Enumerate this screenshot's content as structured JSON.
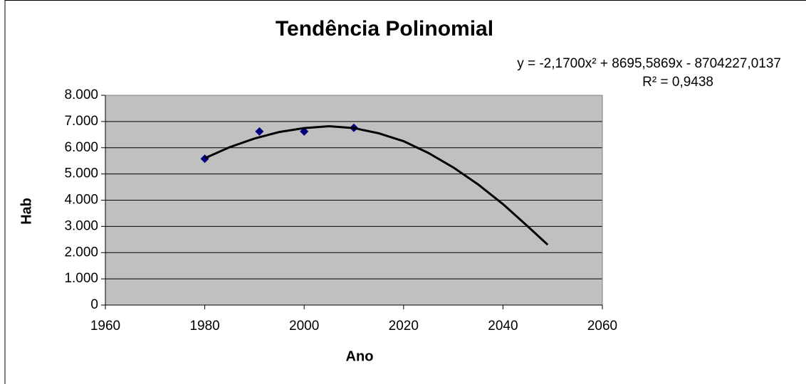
{
  "chart_data": {
    "type": "scatter",
    "title": "Tendência Polinomial",
    "equation": "y = -2,1700x² + 8695,5869x - 8704227,0137",
    "r_squared": "R² = 0,9438",
    "xlabel": "Ano",
    "ylabel": "Hab",
    "series": [
      {
        "color": "#000080",
        "x": [
          1980,
          1991,
          2000,
          2010
        ],
        "values": [
          5580,
          6620,
          6620,
          6760
        ]
      },
      {
        "kind": "trendline",
        "color": "#000000",
        "x": [
          1980,
          1985,
          1990,
          1995,
          2000,
          2005,
          2010,
          2015,
          2020,
          2025,
          2030,
          2035,
          2040,
          2045,
          2049
        ],
        "values": [
          5600,
          6020,
          6350,
          6600,
          6750,
          6820,
          6750,
          6550,
          6250,
          5800,
          5250,
          4600,
          3850,
          3000,
          2300
        ]
      }
    ],
    "xlim": [
      1960,
      2060
    ],
    "xticks": [
      1960,
      1980,
      2000,
      2020,
      2040,
      2060
    ],
    "ylim": [
      0,
      8000
    ],
    "yticks": [
      0,
      {
        "value": 1000,
        "label": "1.000"
      },
      {
        "value": 2000,
        "label": "2.000"
      },
      {
        "value": 3000,
        "label": "3.000"
      },
      {
        "value": 4000,
        "label": "4.000"
      },
      {
        "value": 5000,
        "label": "5.000"
      },
      {
        "value": 6000,
        "label": "6.000"
      },
      {
        "value": 7000,
        "label": "7.000"
      },
      {
        "value": 8000,
        "label": "8.000"
      }
    ],
    "grid": true,
    "plot_background": "#c0c0c0"
  }
}
